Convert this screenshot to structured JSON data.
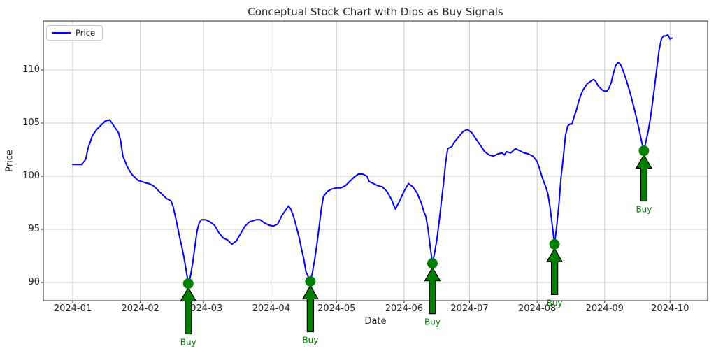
{
  "title": "Conceptual Stock Chart with Dips as Buy Signals",
  "legend": {
    "items": [
      {
        "label": "Price",
        "color": "#0000ff"
      }
    ]
  },
  "axes": {
    "xlabel": "Date",
    "ylabel": "Price",
    "x_ticks": [
      "2024-01",
      "2024-02",
      "2024-03",
      "2024-04",
      "2024-05",
      "2024-06",
      "2024-07",
      "2024-08",
      "2024-09",
      "2024-10"
    ],
    "y_ticks": [
      90,
      95,
      100,
      105,
      110
    ]
  },
  "annotations": {
    "buy_label": "Buy"
  },
  "colors": {
    "line": "#0000ff",
    "signal_green": "#008000",
    "arrow_edge": "#000000",
    "grid": "#cccccc",
    "spine": "#262626",
    "text": "#262626"
  },
  "chart_data": {
    "type": "line",
    "title": "Conceptual Stock Chart with Dips as Buy Signals",
    "xlabel": "Date",
    "ylabel": "Price",
    "xlim": [
      "2023-12-18",
      "2024-10-18"
    ],
    "ylim": [
      88.3,
      114.6
    ],
    "grid": true,
    "legend_position": "upper left",
    "series": [
      {
        "name": "Price",
        "color": "#0000ff",
        "points": [
          [
            "2024-01-01",
            101.1
          ],
          [
            "2024-01-03",
            101.1
          ],
          [
            "2024-01-05",
            101.1
          ],
          [
            "2024-01-07",
            101.6
          ],
          [
            "2024-01-08",
            102.6
          ],
          [
            "2024-01-10",
            103.8
          ],
          [
            "2024-01-12",
            104.4
          ],
          [
            "2024-01-14",
            104.8
          ],
          [
            "2024-01-16",
            105.2
          ],
          [
            "2024-01-18",
            105.3
          ],
          [
            "2024-01-20",
            104.7
          ],
          [
            "2024-01-22",
            104.1
          ],
          [
            "2024-01-23",
            103.3
          ],
          [
            "2024-01-24",
            101.9
          ],
          [
            "2024-01-26",
            100.9
          ],
          [
            "2024-01-28",
            100.2
          ],
          [
            "2024-01-31",
            99.6
          ],
          [
            "2024-02-03",
            99.4
          ],
          [
            "2024-02-05",
            99.3
          ],
          [
            "2024-02-07",
            99.1
          ],
          [
            "2024-02-09",
            98.7
          ],
          [
            "2024-02-11",
            98.3
          ],
          [
            "2024-02-13",
            97.9
          ],
          [
            "2024-02-15",
            97.7
          ],
          [
            "2024-02-16",
            97.2
          ],
          [
            "2024-02-17",
            96.3
          ],
          [
            "2024-02-18",
            95.3
          ],
          [
            "2024-02-19",
            94.3
          ],
          [
            "2024-02-20",
            93.4
          ],
          [
            "2024-02-21",
            92.4
          ],
          [
            "2024-02-22",
            91.2
          ],
          [
            "2024-02-23",
            89.9
          ],
          [
            "2024-02-24",
            90.6
          ],
          [
            "2024-02-25",
            91.8
          ],
          [
            "2024-02-26",
            93.3
          ],
          [
            "2024-02-27",
            94.8
          ],
          [
            "2024-02-28",
            95.6
          ],
          [
            "2024-02-29",
            95.9
          ],
          [
            "2024-03-02",
            95.9
          ],
          [
            "2024-03-04",
            95.7
          ],
          [
            "2024-03-06",
            95.4
          ],
          [
            "2024-03-08",
            94.7
          ],
          [
            "2024-03-10",
            94.2
          ],
          [
            "2024-03-12",
            94.0
          ],
          [
            "2024-03-14",
            93.6
          ],
          [
            "2024-03-16",
            93.9
          ],
          [
            "2024-03-18",
            94.6
          ],
          [
            "2024-03-20",
            95.3
          ],
          [
            "2024-03-22",
            95.7
          ],
          [
            "2024-03-25",
            95.9
          ],
          [
            "2024-03-27",
            95.9
          ],
          [
            "2024-03-29",
            95.6
          ],
          [
            "2024-03-31",
            95.4
          ],
          [
            "2024-04-02",
            95.3
          ],
          [
            "2024-04-04",
            95.5
          ],
          [
            "2024-04-06",
            96.3
          ],
          [
            "2024-04-08",
            96.9
          ],
          [
            "2024-04-09",
            97.2
          ],
          [
            "2024-04-10",
            96.9
          ],
          [
            "2024-04-11",
            96.4
          ],
          [
            "2024-04-12",
            95.7
          ],
          [
            "2024-04-13",
            94.9
          ],
          [
            "2024-04-14",
            94.1
          ],
          [
            "2024-04-15",
            93.1
          ],
          [
            "2024-04-16",
            92.2
          ],
          [
            "2024-04-17",
            91.0
          ],
          [
            "2024-04-19",
            90.1
          ],
          [
            "2024-04-20",
            91.0
          ],
          [
            "2024-04-21",
            92.2
          ],
          [
            "2024-04-22",
            93.6
          ],
          [
            "2024-04-23",
            95.2
          ],
          [
            "2024-04-24",
            96.9
          ],
          [
            "2024-04-25",
            98.1
          ],
          [
            "2024-04-27",
            98.6
          ],
          [
            "2024-04-29",
            98.8
          ],
          [
            "2024-05-01",
            98.9
          ],
          [
            "2024-05-03",
            98.9
          ],
          [
            "2024-05-05",
            99.1
          ],
          [
            "2024-05-07",
            99.5
          ],
          [
            "2024-05-09",
            99.9
          ],
          [
            "2024-05-11",
            100.2
          ],
          [
            "2024-05-13",
            100.2
          ],
          [
            "2024-05-15",
            100.0
          ],
          [
            "2024-05-16",
            99.5
          ],
          [
            "2024-05-18",
            99.3
          ],
          [
            "2024-05-20",
            99.1
          ],
          [
            "2024-05-22",
            99.0
          ],
          [
            "2024-05-24",
            98.6
          ],
          [
            "2024-05-26",
            97.9
          ],
          [
            "2024-05-28",
            96.9
          ],
          [
            "2024-05-30",
            97.7
          ],
          [
            "2024-06-01",
            98.6
          ],
          [
            "2024-06-03",
            99.3
          ],
          [
            "2024-06-05",
            99.0
          ],
          [
            "2024-06-07",
            98.4
          ],
          [
            "2024-06-09",
            97.4
          ],
          [
            "2024-06-10",
            96.7
          ],
          [
            "2024-06-11",
            96.2
          ],
          [
            "2024-06-12",
            95.0
          ],
          [
            "2024-06-13",
            93.3
          ],
          [
            "2024-06-14",
            91.8
          ],
          [
            "2024-06-15",
            92.8
          ],
          [
            "2024-06-16",
            94.0
          ],
          [
            "2024-06-17",
            95.6
          ],
          [
            "2024-06-18",
            97.4
          ],
          [
            "2024-06-19",
            99.2
          ],
          [
            "2024-06-20",
            101.2
          ],
          [
            "2024-06-21",
            102.6
          ],
          [
            "2024-06-23",
            102.8
          ],
          [
            "2024-06-24",
            103.2
          ],
          [
            "2024-06-26",
            103.7
          ],
          [
            "2024-06-28",
            104.2
          ],
          [
            "2024-06-30",
            104.4
          ],
          [
            "2024-07-02",
            104.1
          ],
          [
            "2024-07-04",
            103.5
          ],
          [
            "2024-07-06",
            102.9
          ],
          [
            "2024-07-08",
            102.3
          ],
          [
            "2024-07-10",
            102.0
          ],
          [
            "2024-07-12",
            101.9
          ],
          [
            "2024-07-14",
            102.1
          ],
          [
            "2024-07-16",
            102.2
          ],
          [
            "2024-07-17",
            102.0
          ],
          [
            "2024-07-18",
            102.3
          ],
          [
            "2024-07-20",
            102.2
          ],
          [
            "2024-07-22",
            102.6
          ],
          [
            "2024-07-24",
            102.4
          ],
          [
            "2024-07-26",
            102.2
          ],
          [
            "2024-07-28",
            102.1
          ],
          [
            "2024-07-30",
            101.9
          ],
          [
            "2024-08-01",
            101.4
          ],
          [
            "2024-08-02",
            100.8
          ],
          [
            "2024-08-03",
            100.1
          ],
          [
            "2024-08-04",
            99.5
          ],
          [
            "2024-08-05",
            99.0
          ],
          [
            "2024-08-06",
            98.3
          ],
          [
            "2024-08-07",
            97.0
          ],
          [
            "2024-08-08",
            95.3
          ],
          [
            "2024-08-09",
            93.6
          ],
          [
            "2024-08-10",
            95.3
          ],
          [
            "2024-08-11",
            97.3
          ],
          [
            "2024-08-12",
            99.9
          ],
          [
            "2024-08-13",
            101.7
          ],
          [
            "2024-08-14",
            103.8
          ],
          [
            "2024-08-15",
            104.7
          ],
          [
            "2024-08-16",
            104.9
          ],
          [
            "2024-08-17",
            104.9
          ],
          [
            "2024-08-18",
            105.6
          ],
          [
            "2024-08-19",
            106.2
          ],
          [
            "2024-08-20",
            107.0
          ],
          [
            "2024-08-21",
            107.6
          ],
          [
            "2024-08-22",
            108.1
          ],
          [
            "2024-08-24",
            108.7
          ],
          [
            "2024-08-26",
            109.0
          ],
          [
            "2024-08-27",
            109.1
          ],
          [
            "2024-08-28",
            108.9
          ],
          [
            "2024-08-29",
            108.5
          ],
          [
            "2024-08-31",
            108.1
          ],
          [
            "2024-09-01",
            108.0
          ],
          [
            "2024-09-02",
            108.0
          ],
          [
            "2024-09-03",
            108.3
          ],
          [
            "2024-09-04",
            108.8
          ],
          [
            "2024-09-05",
            109.7
          ],
          [
            "2024-09-06",
            110.4
          ],
          [
            "2024-09-07",
            110.7
          ],
          [
            "2024-09-08",
            110.6
          ],
          [
            "2024-09-09",
            110.2
          ],
          [
            "2024-09-10",
            109.6
          ],
          [
            "2024-09-11",
            109.0
          ],
          [
            "2024-09-12",
            108.3
          ],
          [
            "2024-09-13",
            107.6
          ],
          [
            "2024-09-14",
            106.8
          ],
          [
            "2024-09-15",
            106.0
          ],
          [
            "2024-09-16",
            105.1
          ],
          [
            "2024-09-17",
            104.2
          ],
          [
            "2024-09-18",
            103.2
          ],
          [
            "2024-09-19",
            102.4
          ],
          [
            "2024-09-20",
            103.3
          ],
          [
            "2024-09-21",
            104.3
          ],
          [
            "2024-09-22",
            105.5
          ],
          [
            "2024-09-23",
            107.0
          ],
          [
            "2024-09-24",
            108.6
          ],
          [
            "2024-09-25",
            110.3
          ],
          [
            "2024-09-26",
            111.9
          ],
          [
            "2024-09-27",
            112.9
          ],
          [
            "2024-09-28",
            113.2
          ],
          [
            "2024-09-29",
            113.2
          ],
          [
            "2024-09-30",
            113.3
          ],
          [
            "2024-10-01",
            112.9
          ],
          [
            "2024-10-02",
            113.0
          ]
        ]
      }
    ],
    "buy_signals": [
      {
        "date": "2024-02-23",
        "price": 89.9
      },
      {
        "date": "2024-04-19",
        "price": 90.1
      },
      {
        "date": "2024-06-14",
        "price": 91.8
      },
      {
        "date": "2024-08-09",
        "price": 93.6
      },
      {
        "date": "2024-09-19",
        "price": 102.4
      }
    ]
  }
}
